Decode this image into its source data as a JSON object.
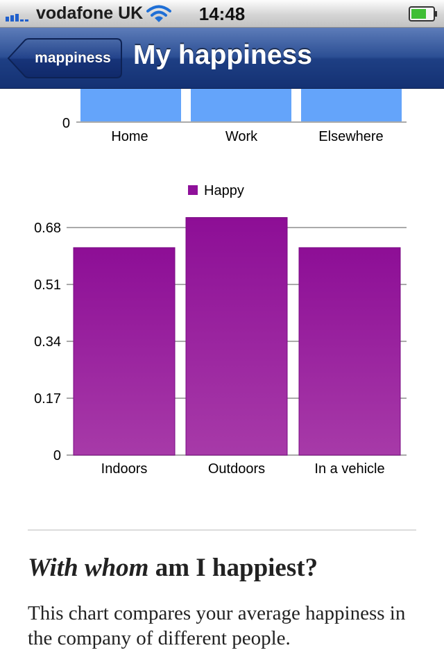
{
  "status_bar": {
    "carrier": "vodafone UK",
    "time": "14:48"
  },
  "nav": {
    "back_label": "mappiness",
    "title": "My happiness"
  },
  "chart_data": [
    {
      "type": "bar",
      "categories": [
        "Home",
        "Work",
        "Elsewhere"
      ],
      "series": [
        {
          "values": [
            null,
            null,
            null
          ],
          "color": "#64a4fa"
        }
      ],
      "visible_tick_labels": [
        "0"
      ],
      "note_visible": "chart is scrolled; only the bottom of the bars is visible"
    },
    {
      "type": "bar",
      "categories": [
        "Indoors",
        "Outdoors",
        "In a vehicle"
      ],
      "series": [
        {
          "name": "Happy",
          "values": [
            0.62,
            0.71,
            0.62
          ],
          "color": "#8f119a"
        }
      ],
      "ylim": [
        0,
        0.68
      ],
      "ticks": [
        "0",
        "0.17",
        "0.34",
        "0.51",
        "0.68"
      ],
      "grid": true,
      "legend": "top-center"
    }
  ],
  "article": {
    "heading_em": "With whom",
    "heading_rest": " am I happiest?",
    "body": "This chart compares your average happiness in the company of different people."
  }
}
